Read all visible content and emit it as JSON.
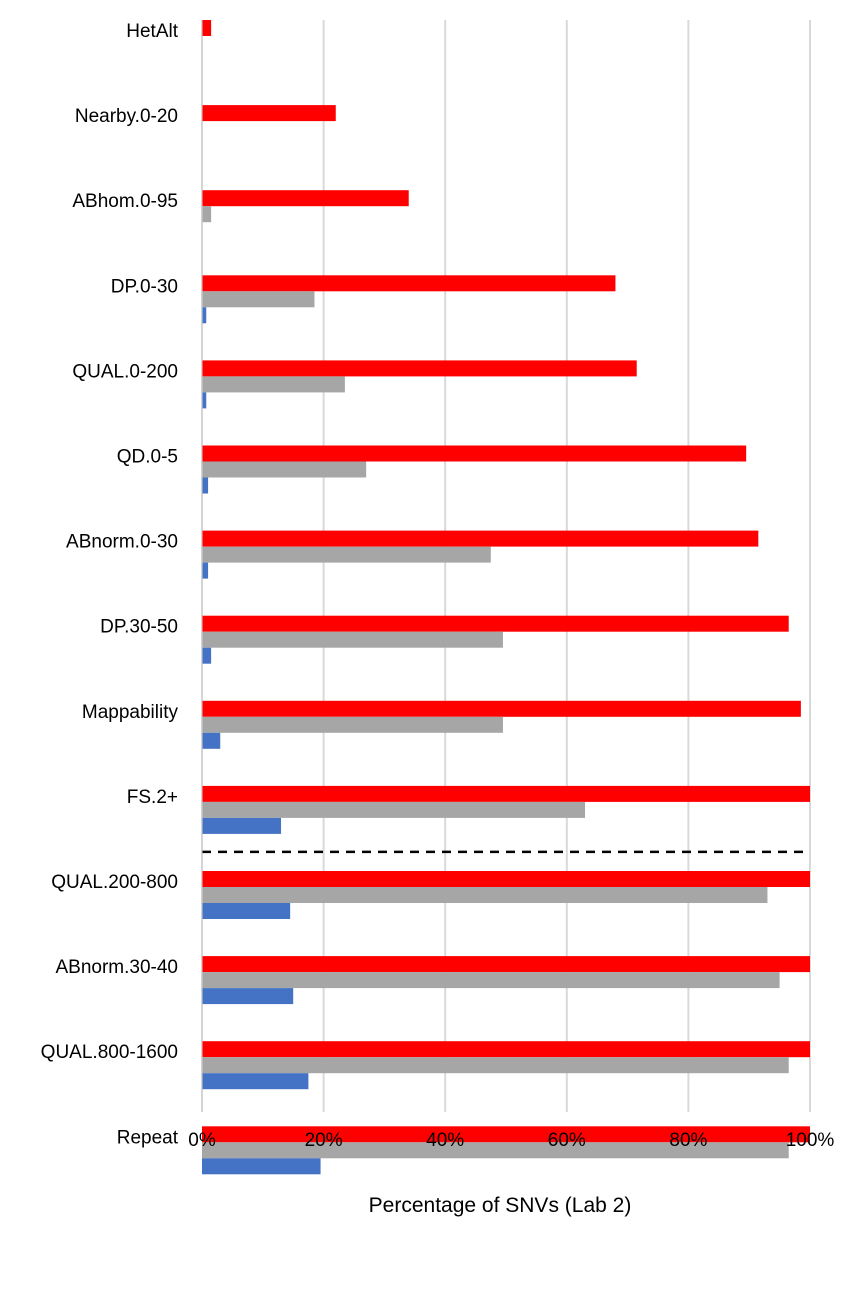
{
  "chart_data": {
    "type": "bar",
    "orientation": "horizontal",
    "categories": [
      "HetAlt",
      "Nearby.0-20",
      "ABhom.0-95",
      "DP.0-30",
      "QUAL.0-200",
      "QD.0-5",
      "ABnorm.0-30",
      "DP.30-50",
      "Mappability",
      "FS.2+",
      "QUAL.200-800",
      "ABnorm.30-40",
      "QUAL.800-1600",
      "Repeat"
    ],
    "series": [
      {
        "color": "#ff0000",
        "values": [
          1.5,
          22,
          34,
          68,
          71.5,
          89.5,
          91.5,
          96.5,
          98.5,
          100,
          100,
          100,
          100,
          100
        ]
      },
      {
        "color": "#a6a6a6",
        "values": [
          0,
          0,
          1.5,
          18.5,
          23.5,
          27,
          47.5,
          49.5,
          49.5,
          63,
          93,
          95,
          96.5,
          96.5
        ]
      },
      {
        "color": "#4472c4",
        "values": [
          0,
          0,
          0,
          0.7,
          0.7,
          1,
          1,
          1.5,
          3,
          13,
          14.5,
          15,
          17.5,
          19.5
        ]
      }
    ],
    "xlabel": "Percentage of SNVs (Lab 2)",
    "xlim": [
      0,
      100
    ],
    "xticks": [
      "0%",
      "20%",
      "40%",
      "60%",
      "80%",
      "100%"
    ],
    "grid": "vertical",
    "legend": "none",
    "separator_after": "FS.2+"
  }
}
